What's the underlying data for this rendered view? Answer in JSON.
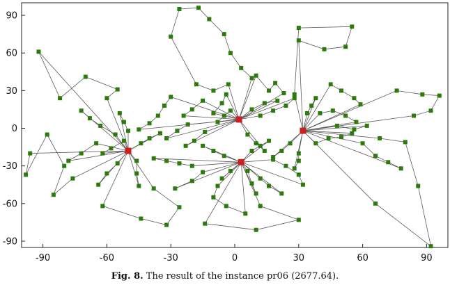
{
  "chart_data": {
    "type": "scatter",
    "xlabel": "",
    "ylabel": "",
    "xlim": [
      -100,
      100
    ],
    "ylim": [
      -95,
      100
    ],
    "x_ticks": [
      -90,
      -60,
      -30,
      0,
      30,
      60,
      90
    ],
    "y_ticks": [
      90,
      60,
      30,
      0,
      -30,
      -60,
      -90
    ],
    "grid": false,
    "legend": "none",
    "colors": {
      "customer": "#2f7a0f",
      "depot": "#cc1f1f",
      "route": "#5a5a5a"
    },
    "depots": [
      {
        "x": 2,
        "y": 7
      },
      {
        "x": 32,
        "y": -2
      },
      {
        "x": -50,
        "y": -18
      },
      {
        "x": 3,
        "y": -27
      }
    ],
    "routes": [
      {
        "depot": 0,
        "points": [
          [
            -3,
            35
          ],
          [
            -10,
            30
          ],
          [
            -18,
            35
          ],
          [
            -30,
            73
          ],
          [
            -26,
            95
          ],
          [
            -17,
            96
          ],
          [
            -12,
            87
          ],
          [
            -5,
            75
          ],
          [
            -2,
            60
          ],
          [
            3,
            48
          ],
          [
            8,
            40
          ]
        ]
      },
      {
        "depot": 0,
        "points": [
          [
            10,
            42
          ],
          [
            16,
            30
          ],
          [
            19,
            36
          ],
          [
            23,
            28
          ]
        ]
      },
      {
        "depot": 0,
        "points": [
          [
            -4,
            27
          ],
          [
            -6,
            20
          ],
          [
            -10,
            12
          ]
        ]
      },
      {
        "depot": 0,
        "points": [
          [
            -15,
            22
          ],
          [
            -20,
            15
          ],
          [
            -24,
            10
          ]
        ]
      },
      {
        "depot": 0,
        "points": [
          [
            -30,
            25
          ],
          [
            -33,
            18
          ],
          [
            -36,
            10
          ],
          [
            -40,
            4
          ],
          [
            -45,
            -1
          ]
        ]
      },
      {
        "depot": 0,
        "points": [
          [
            -22,
            3
          ],
          [
            -27,
            -2
          ],
          [
            -32,
            -8
          ]
        ]
      },
      {
        "depot": 0,
        "points": [
          [
            -14,
            -3
          ],
          [
            -19,
            -10
          ],
          [
            -23,
            -14
          ]
        ]
      },
      {
        "depot": 0,
        "points": [
          [
            12,
            10
          ],
          [
            18,
            14
          ],
          [
            24,
            18
          ],
          [
            28,
            24
          ]
        ]
      },
      {
        "depot": 0,
        "points": [
          [
            8,
            15
          ],
          [
            14,
            20
          ],
          [
            20,
            22
          ]
        ]
      },
      {
        "depot": 0,
        "points": [
          [
            6,
            -5
          ],
          [
            10,
            -12
          ],
          [
            14,
            -18
          ]
        ]
      },
      {
        "depot": 0,
        "points": [
          [
            -2,
            14
          ],
          [
            -5,
            10
          ],
          [
            -8,
            5
          ]
        ]
      },
      {
        "depot": 1,
        "points": [
          [
            28,
            27
          ],
          [
            30,
            80
          ],
          [
            55,
            81
          ],
          [
            52,
            65
          ],
          [
            42,
            63
          ],
          [
            30,
            70
          ]
        ]
      },
      {
        "depot": 1,
        "points": [
          [
            45,
            35
          ],
          [
            50,
            30
          ],
          [
            56,
            24
          ],
          [
            59,
            19
          ]
        ]
      },
      {
        "depot": 1,
        "points": [
          [
            40,
            12
          ],
          [
            46,
            14
          ],
          [
            52,
            10
          ],
          [
            57,
            5
          ]
        ]
      },
      {
        "depot": 1,
        "points": [
          [
            38,
            -12
          ],
          [
            44,
            -8
          ],
          [
            50,
            -7
          ],
          [
            55,
            -4
          ]
        ]
      },
      {
        "depot": 1,
        "points": [
          [
            60,
            -12
          ],
          [
            66,
            -22
          ],
          [
            72,
            -27
          ],
          [
            78,
            -32
          ]
        ]
      },
      {
        "depot": 1,
        "points": [
          [
            76,
            30
          ],
          [
            88,
            27
          ],
          [
            96,
            26
          ],
          [
            92,
            14
          ],
          [
            84,
            10
          ]
        ]
      },
      {
        "depot": 1,
        "points": [
          [
            68,
            -8
          ],
          [
            80,
            -11
          ],
          [
            86,
            -46
          ],
          [
            92,
            -94
          ],
          [
            66,
            -60
          ]
        ]
      },
      {
        "depot": 1,
        "points": [
          [
            26,
            -12
          ],
          [
            22,
            -18
          ],
          [
            18,
            -23
          ]
        ]
      },
      {
        "depot": 1,
        "points": [
          [
            34,
            12
          ],
          [
            36,
            18
          ],
          [
            38,
            24
          ]
        ]
      },
      {
        "depot": 1,
        "points": [
          [
            48,
            2
          ],
          [
            56,
            -1
          ],
          [
            62,
            2
          ]
        ]
      },
      {
        "depot": 1,
        "points": [
          [
            30,
            -20
          ],
          [
            30,
            -26
          ],
          [
            28,
            -32
          ]
        ]
      },
      {
        "depot": 2,
        "points": [
          [
            -60,
            24
          ],
          [
            -55,
            31
          ],
          [
            -70,
            41
          ],
          [
            -82,
            24
          ],
          [
            -92,
            61
          ]
        ]
      },
      {
        "depot": 2,
        "points": [
          [
            -96,
            -20
          ],
          [
            -98,
            -37
          ],
          [
            -88,
            -5
          ],
          [
            -80,
            -30
          ],
          [
            -85,
            -53
          ],
          [
            -76,
            -40
          ]
        ]
      },
      {
        "depot": 2,
        "points": [
          [
            -62,
            -62
          ],
          [
            -44,
            -72
          ],
          [
            -32,
            -77
          ],
          [
            -26,
            -63
          ],
          [
            -38,
            -48
          ]
        ]
      },
      {
        "depot": 2,
        "points": [
          [
            -65,
            -12
          ],
          [
            -72,
            -20
          ],
          [
            -78,
            -26
          ]
        ]
      },
      {
        "depot": 2,
        "points": [
          [
            -55,
            -28
          ],
          [
            -60,
            -36
          ],
          [
            -64,
            -45
          ]
        ]
      },
      {
        "depot": 2,
        "points": [
          [
            -56,
            -5
          ],
          [
            -63,
            2
          ],
          [
            -68,
            8
          ],
          [
            -72,
            14
          ]
        ]
      },
      {
        "depot": 2,
        "points": [
          [
            -46,
            -26
          ],
          [
            -46,
            -36
          ],
          [
            -45,
            -46
          ]
        ]
      },
      {
        "depot": 2,
        "points": [
          [
            -44,
            -12
          ],
          [
            -40,
            -8
          ],
          [
            -35,
            -4
          ]
        ]
      },
      {
        "depot": 2,
        "points": [
          [
            -52,
            -10
          ],
          [
            -58,
            -16
          ],
          [
            -62,
            -20
          ]
        ]
      },
      {
        "depot": 2,
        "points": [
          [
            -50,
            -2
          ],
          [
            -52,
            5
          ],
          [
            -54,
            12
          ]
        ]
      },
      {
        "depot": 3,
        "points": [
          [
            -15,
            -35
          ],
          [
            -20,
            -42
          ],
          [
            -28,
            -48
          ]
        ]
      },
      {
        "depot": 3,
        "points": [
          [
            -8,
            -46
          ],
          [
            -10,
            -55
          ],
          [
            -4,
            -62
          ],
          [
            5,
            -68
          ]
        ]
      },
      {
        "depot": 3,
        "points": [
          [
            -14,
            -76
          ],
          [
            10,
            -81
          ],
          [
            30,
            -73
          ],
          [
            12,
            -62
          ]
        ]
      },
      {
        "depot": 3,
        "points": [
          [
            12,
            -40
          ],
          [
            16,
            -46
          ],
          [
            22,
            -52
          ]
        ]
      },
      {
        "depot": 3,
        "points": [
          [
            18,
            -25
          ],
          [
            24,
            -30
          ],
          [
            30,
            -37
          ],
          [
            32,
            -45
          ]
        ]
      },
      {
        "depot": 3,
        "points": [
          [
            -5,
            -22
          ],
          [
            -10,
            -18
          ],
          [
            -15,
            -14
          ]
        ]
      },
      {
        "depot": 3,
        "points": [
          [
            8,
            -18
          ],
          [
            12,
            -14
          ],
          [
            16,
            -10
          ]
        ]
      },
      {
        "depot": 3,
        "points": [
          [
            -2,
            -34
          ],
          [
            -6,
            -40
          ]
        ]
      },
      {
        "depot": 3,
        "points": [
          [
            6,
            -34
          ],
          [
            8,
            -44
          ],
          [
            10,
            -52
          ]
        ]
      },
      {
        "depot": 3,
        "points": [
          [
            -20,
            -30
          ],
          [
            -26,
            -28
          ],
          [
            -32,
            -26
          ],
          [
            -38,
            -24
          ]
        ]
      }
    ]
  },
  "caption": {
    "label": "Fig. 8.",
    "text": "The result of the instance pr06 (2677.64)."
  }
}
